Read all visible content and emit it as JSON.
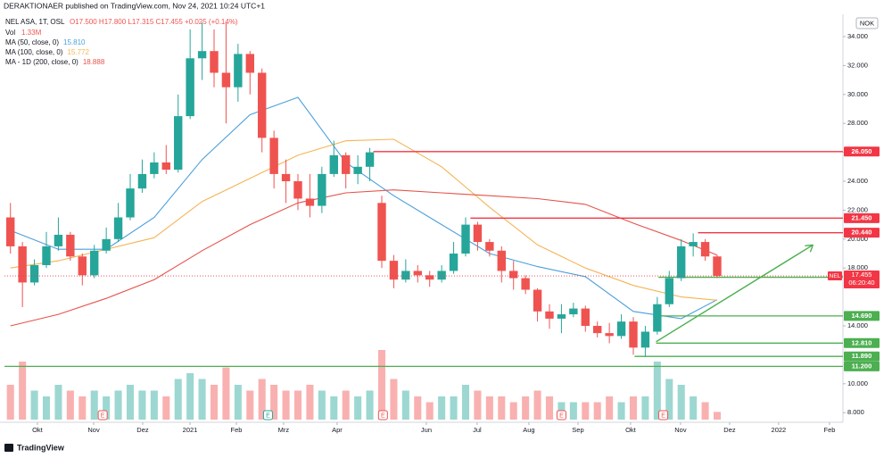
{
  "chart_data": {
    "type": "candlestick",
    "header": "DERAKTIONAER published on TradingView.com, Nov 24, 2021 10:24 UTC+1",
    "legend": {
      "symbol": "NEL ASA, 1T, OSL",
      "ohlc": "O17.500 H17.800 L17.315 C17.455 +0.025 (+0.14%)",
      "volume_name": "Vol",
      "volume_value": "1.33M"
    },
    "currency": "NOK",
    "brand": "TradingView",
    "open": [
      21.5,
      19.5,
      17,
      18.2,
      19.5,
      20.3,
      18.8,
      17.5,
      19.2,
      20,
      21.5,
      23.5,
      24.5,
      25.3,
      24.8,
      28.5,
      32.5,
      33,
      31.5,
      30.5,
      32.8,
      31.5,
      27,
      24.5,
      24,
      22.8,
      22.3,
      24.5,
      25.8,
      24.5,
      25,
      22.5,
      18.5,
      17.2,
      17.8,
      17.5,
      17.2,
      17.8,
      19,
      21,
      19.8,
      19.2,
      17.8,
      17.3,
      16.5,
      15,
      14.5,
      14.8,
      15.2,
      14,
      13.5,
      13.3,
      14.3,
      12.5,
      13.6,
      15.5,
      17.3,
      19.5,
      19.8,
      18.8
    ],
    "high": [
      22.5,
      19.8,
      18.6,
      20.5,
      21.5,
      20.5,
      19,
      19.6,
      20.8,
      22.5,
      24.5,
      25.5,
      26,
      26.5,
      30,
      34.5,
      35,
      34.5,
      35,
      33.5,
      33,
      31.8,
      27.5,
      25.5,
      24.5,
      24.5,
      25,
      26.8,
      26,
      25.8,
      26.3,
      23,
      18.9,
      18.6,
      18.2,
      17.8,
      18.2,
      19.8,
      21.5,
      21.2,
      20,
      19.5,
      18.5,
      17.5,
      16.6,
      15.5,
      15.5,
      15.6,
      15.4,
      14.3,
      14.2,
      14.8,
      14.6,
      14,
      16,
      17.8,
      20,
      20.4,
      20,
      18.9
    ],
    "low": [
      19,
      15.3,
      16.8,
      18,
      19.2,
      18.5,
      16.8,
      17.3,
      19,
      19.8,
      21.3,
      23.2,
      24.2,
      24.5,
      24.6,
      28.3,
      31,
      30.5,
      28,
      29.5,
      30,
      26,
      23.5,
      22.5,
      22,
      21.5,
      21.8,
      24.3,
      23.5,
      23.8,
      24,
      18,
      16.6,
      17,
      17,
      16.7,
      17,
      17.6,
      18.8,
      19.2,
      18.8,
      17,
      16.5,
      16.2,
      14.3,
      13.8,
      13.5,
      14.6,
      13.6,
      13.2,
      12.8,
      13.1,
      12,
      11.9,
      13.4,
      15.3,
      17.1,
      18.8,
      18.5,
      17.3
    ],
    "close": [
      19.5,
      17,
      18.2,
      19.5,
      20.3,
      18.8,
      17.5,
      19.2,
      20,
      21.5,
      23.5,
      24.5,
      25.3,
      24.8,
      28.5,
      32.5,
      33,
      31.5,
      30.5,
      32.8,
      31.5,
      27,
      24.5,
      24,
      22.8,
      22.3,
      24.5,
      25.8,
      24.5,
      25,
      26,
      18.5,
      17.2,
      17.8,
      17.5,
      17.2,
      17.8,
      19,
      21,
      19.8,
      19.2,
      17.8,
      17.3,
      16.5,
      15,
      14.5,
      14.8,
      15.2,
      14,
      13.5,
      13.3,
      14.3,
      12.5,
      13.6,
      15.5,
      17.3,
      19.5,
      19.8,
      18.8,
      17.455
    ],
    "up_color": "#26a69a",
    "down_color": "#ef5350",
    "volume": {
      "values": [
        6,
        10,
        5,
        4,
        6,
        5,
        4,
        5,
        4,
        5,
        6,
        5,
        5,
        4,
        7,
        8,
        7,
        6,
        9,
        6,
        5,
        7,
        6,
        5,
        5,
        6,
        5,
        4,
        5,
        4,
        5,
        12,
        7,
        5,
        4,
        3,
        4,
        4,
        6,
        5,
        4,
        4,
        3,
        4,
        5,
        4,
        3,
        3,
        3,
        3,
        4,
        3,
        4,
        4,
        10,
        7,
        6,
        4,
        3,
        1.33
      ],
      "ylim": [
        0,
        20
      ]
    },
    "ma": [
      {
        "name": "MA (50, close, 0)",
        "value_label": "15.810",
        "color": "#4a9fdc",
        "x": [
          0,
          4,
          8,
          12,
          16,
          20,
          24,
          28,
          32,
          36,
          40,
          44,
          48,
          52,
          56,
          59
        ],
        "values": [
          20.6,
          19.3,
          19.3,
          21.5,
          25.5,
          28.6,
          29.8,
          25.3,
          23,
          21,
          19,
          18.1,
          17.4,
          15,
          14.5,
          15.81
        ]
      },
      {
        "name": "MA (100, close, 0)",
        "value_label": "15.772",
        "color": "#f5b455",
        "x": [
          0,
          4,
          8,
          12,
          16,
          20,
          24,
          28,
          32,
          36,
          40,
          44,
          48,
          52,
          56,
          59
        ],
        "values": [
          18,
          18.5,
          19.3,
          20.1,
          22.6,
          24.2,
          25.8,
          26.8,
          26.9,
          25,
          22.2,
          19.6,
          18,
          16.8,
          16,
          15.772
        ]
      },
      {
        "name": "MA - 1D (200, close, 0)",
        "value_label": "18.888",
        "color": "#e5534b",
        "x": [
          0,
          4,
          8,
          12,
          16,
          20,
          24,
          28,
          32,
          36,
          40,
          44,
          48,
          52,
          56,
          59
        ],
        "values": [
          14,
          14.8,
          15.9,
          17.2,
          19.2,
          21,
          22.5,
          23.2,
          23.4,
          23.2,
          23,
          22.8,
          22.4,
          21.1,
          19.9,
          18.888
        ]
      }
    ],
    "levels": [
      {
        "value": 26.05,
        "label": "26.050",
        "x_start": 30.3,
        "color": "#f23645"
      },
      {
        "value": 21.45,
        "label": "21.450",
        "x_start": 38.4,
        "color": "#f23645"
      },
      {
        "value": 20.44,
        "label": "20.440",
        "x_start": 57.4,
        "color": "#f23645"
      },
      {
        "value": 17.36,
        "label": "17.360",
        "x_start": 54.1,
        "color": "#4caf50"
      },
      {
        "value": 14.69,
        "label": "14.690",
        "x_start": 54.1,
        "color": "#4caf50"
      },
      {
        "value": 12.81,
        "label": "12.810",
        "x_start": 53.9,
        "color": "#4caf50"
      },
      {
        "value": 11.89,
        "label": "11.890",
        "x_start": 52.1,
        "color": "#4caf50"
      },
      {
        "value": 11.2,
        "label": "11.200",
        "x_start": -0.5,
        "color": "#4caf50"
      }
    ],
    "trendline": {
      "x": [
        53.9,
        67
      ],
      "y": [
        12.9,
        19.6
      ],
      "color": "#4caf50"
    },
    "last_price": {
      "name": "NEL",
      "value": 17.455,
      "label": "17.455",
      "countdown": "06:20:40",
      "color": "#f23645"
    },
    "events": [
      {
        "x": 7.7,
        "label": "E",
        "color": "#ef5350"
      },
      {
        "x": 21.5,
        "label": "E",
        "color": "#26a69a"
      },
      {
        "x": 31.1,
        "label": "E",
        "color": "#ef5350"
      },
      {
        "x": 46,
        "label": "E",
        "color": "#ef5350"
      },
      {
        "x": 54.5,
        "label": "E",
        "color": "#ef5350"
      }
    ],
    "xlim": [
      -0.5,
      69.5
    ],
    "xticks": [
      {
        "value": 2.25,
        "label": "Okt"
      },
      {
        "value": 6.95,
        "label": "Nov"
      },
      {
        "value": 11.04,
        "label": "Dez"
      },
      {
        "value": 14.99,
        "label": "2021"
      },
      {
        "value": 18.86,
        "label": "Feb"
      },
      {
        "value": 22.8,
        "label": "Mrz"
      },
      {
        "value": 27.27,
        "label": "Apr"
      },
      {
        "value": 34.72,
        "label": "Jun"
      },
      {
        "value": 38.96,
        "label": "Jul"
      },
      {
        "value": 43.28,
        "label": "Aug"
      },
      {
        "value": 47.38,
        "label": "Sep"
      },
      {
        "value": 51.77,
        "label": "Okt"
      },
      {
        "value": 55.94,
        "label": "Nov"
      },
      {
        "value": 60.04,
        "label": "Dez"
      },
      {
        "value": 64.13,
        "label": "2022"
      },
      {
        "value": 68.38,
        "label": "Feb"
      }
    ],
    "ylim": [
      7.52,
      35.42
    ],
    "yticks": [
      {
        "value": 8,
        "label": "8.000"
      },
      {
        "value": 10,
        "label": "10.000"
      },
      {
        "value": 14,
        "label": "14.000"
      },
      {
        "value": 18,
        "label": "18.000"
      },
      {
        "value": 20,
        "label": "20.000"
      },
      {
        "value": 22,
        "label": "22.000"
      },
      {
        "value": 24,
        "label": "24.000"
      },
      {
        "value": 26,
        "label": "26.000"
      },
      {
        "value": 28,
        "label": "28.000"
      },
      {
        "value": 30,
        "label": "30.000"
      },
      {
        "value": 32,
        "label": "32.000"
      },
      {
        "value": 34,
        "label": "34.000"
      }
    ],
    "grid": false
  }
}
